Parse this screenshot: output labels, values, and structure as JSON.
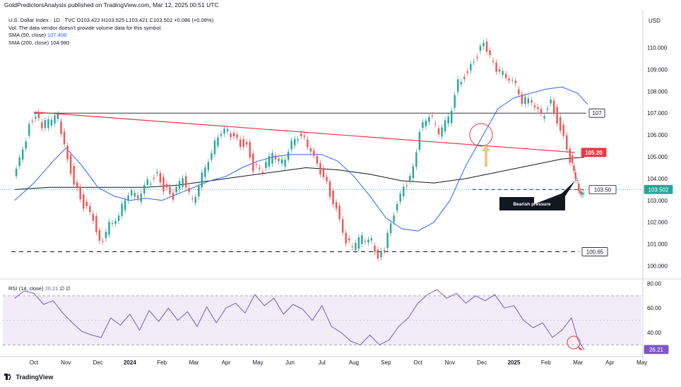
{
  "header": {
    "published_by": "GoldPredictorsAnalysis published on TradingView.com, Mar 12, 2025 00:51 UTC"
  },
  "legend": {
    "symbol_line": "U.S. Dollar Index · 1D · TVC",
    "ohlc": "O103.422 H103.525 L103.421 C103.502 +0.086 (+0.08%)",
    "vol_note": "Vol: The data vendor doesn't provide volume data for this symbol.",
    "sma50_label": "SMA (50, close)",
    "sma50_value": "107.408",
    "sma200_label": "SMA (200, close)",
    "sma200_value": "104.980",
    "rsi_label": "RSI (14, close)",
    "rsi_value": "26.21",
    "rsi_extra": "∅ ∅"
  },
  "axis": {
    "currency": "USD"
  },
  "footer": {
    "brand": "TradingView"
  },
  "annotation": {
    "bearish": "Bearish pressure"
  },
  "colors": {
    "up": "#26a69a",
    "down": "#ef5350",
    "sma50": "#2962ff",
    "sma200": "#131722",
    "trendline": "#f23645",
    "rsi": "#7e57c2",
    "rsi_band": "#ede7f6"
  },
  "chart_data": {
    "type": "line",
    "price_axis": {
      "ticks": [
        "110.000",
        "109.000",
        "108.000",
        "107.000",
        "106.000",
        "105.000",
        "104.000",
        "103.000",
        "102.000",
        "101.000",
        "100.000"
      ],
      "tick_values": [
        110,
        109,
        108,
        107,
        106,
        105,
        104,
        103,
        102,
        101,
        100
      ],
      "ylim": [
        99.5,
        111.6
      ]
    },
    "rsi_axis": {
      "ticks": [
        "80.00",
        "60.00",
        "40.00"
      ],
      "tick_values": [
        80,
        60,
        40
      ],
      "ylim": [
        25,
        82
      ],
      "bands": [
        70,
        30
      ]
    },
    "time_axis": {
      "labels": [
        "Oct",
        "Nov",
        "Dec",
        "2024",
        "Feb",
        "Mar",
        "Apr",
        "May",
        "Jun",
        "Jul",
        "Aug",
        "Sep",
        "Oct",
        "Nov",
        "Dec",
        "2025",
        "Feb",
        "Mar",
        "Apr",
        "May"
      ],
      "month_index": [
        0,
        1,
        2,
        3,
        4,
        5,
        6,
        7,
        8,
        9,
        10,
        11,
        12,
        13,
        14,
        15,
        16,
        17,
        18,
        19
      ]
    },
    "series": [
      {
        "name": "U.S. Dollar Index",
        "month_index": [
          -0.6,
          -0.3,
          -0.1,
          0.1,
          0.3,
          0.5,
          0.8,
          1.0,
          1.3,
          1.6,
          1.9,
          2.1,
          2.4,
          2.7,
          3.0,
          3.3,
          3.6,
          3.9,
          4.1,
          4.4,
          4.7,
          5.0,
          5.3,
          5.6,
          5.9,
          6.1,
          6.4,
          6.7,
          6.9,
          7.2,
          7.5,
          7.8,
          8.1,
          8.4,
          8.6,
          8.9,
          9.2,
          9.5,
          9.8,
          10.0,
          10.3,
          10.6,
          10.8,
          11.0,
          11.3,
          11.6,
          11.9,
          12.1,
          12.4,
          12.7,
          13.0,
          13.3,
          13.6,
          13.9,
          14.1,
          14.4,
          14.7,
          15.0,
          15.3,
          15.6,
          15.9,
          16.2,
          16.5,
          16.8,
          16.9,
          17.0,
          17.1,
          17.2
        ],
        "values": [
          104.0,
          105.2,
          106.5,
          107.0,
          106.4,
          106.6,
          106.8,
          105.6,
          103.8,
          102.8,
          102.1,
          101.0,
          101.9,
          102.4,
          103.4,
          103.1,
          103.8,
          104.2,
          103.6,
          103.2,
          104.0,
          102.9,
          104.2,
          105.3,
          106.2,
          106.1,
          105.7,
          105.5,
          104.5,
          104.4,
          105.1,
          104.7,
          105.7,
          106.1,
          105.4,
          104.6,
          103.7,
          102.6,
          101.2,
          100.8,
          101.3,
          101.1,
          100.5,
          100.8,
          102.4,
          103.5,
          104.4,
          106.3,
          107.0,
          106.1,
          106.7,
          108.4,
          108.9,
          109.7,
          110.1,
          109.2,
          108.8,
          108.6,
          107.6,
          107.5,
          106.8,
          107.5,
          106.3,
          104.9,
          104.2,
          103.8,
          103.4,
          103.5
        ]
      },
      {
        "name": "SMA (50, close)",
        "month_index": [
          -0.6,
          0.0,
          0.6,
          1.0,
          1.5,
          2.0,
          2.5,
          3.0,
          3.5,
          4.0,
          4.5,
          5.0,
          5.5,
          6.0,
          6.5,
          7.0,
          7.5,
          8.0,
          8.5,
          9.0,
          9.5,
          10.0,
          10.5,
          11.0,
          11.5,
          12.0,
          12.5,
          13.0,
          13.5,
          14.0,
          14.5,
          15.0,
          15.5,
          16.0,
          16.5,
          17.0,
          17.3
        ],
        "values": [
          103.0,
          103.8,
          104.8,
          105.4,
          104.6,
          103.6,
          103.2,
          103.0,
          103.1,
          103.0,
          103.3,
          103.6,
          103.9,
          104.1,
          104.5,
          104.8,
          105.0,
          105.1,
          105.1,
          105.1,
          104.8,
          104.1,
          103.2,
          102.2,
          101.7,
          101.6,
          102.0,
          103.0,
          104.6,
          105.9,
          107.2,
          107.7,
          107.9,
          108.1,
          108.2,
          107.9,
          107.4
        ]
      },
      {
        "name": "SMA (200, close)",
        "month_index": [
          -0.6,
          0.5,
          1.5,
          2.5,
          3.5,
          4.5,
          5.5,
          6.5,
          7.5,
          8.5,
          9.5,
          10.5,
          11.5,
          12.5,
          13.5,
          14.5,
          15.5,
          16.5,
          17.2
        ],
        "values": [
          103.5,
          103.6,
          103.6,
          103.6,
          103.6,
          103.7,
          103.9,
          104.1,
          104.3,
          104.5,
          104.4,
          104.2,
          103.9,
          103.8,
          104.0,
          104.3,
          104.6,
          104.9,
          104.98
        ]
      },
      {
        "name": "RSI (14, close)",
        "month_index": [
          -0.6,
          -0.3,
          0.0,
          0.3,
          0.6,
          0.9,
          1.2,
          1.5,
          1.8,
          2.1,
          2.4,
          2.7,
          3.0,
          3.3,
          3.6,
          3.9,
          4.2,
          4.5,
          4.8,
          5.1,
          5.4,
          5.7,
          6.0,
          6.3,
          6.6,
          6.9,
          7.2,
          7.5,
          7.8,
          8.1,
          8.4,
          8.7,
          9.0,
          9.3,
          9.6,
          9.9,
          10.2,
          10.5,
          10.8,
          11.1,
          11.4,
          11.7,
          12.0,
          12.3,
          12.6,
          12.9,
          13.2,
          13.5,
          13.8,
          14.1,
          14.4,
          14.7,
          15.0,
          15.3,
          15.6,
          15.9,
          16.2,
          16.5,
          16.8,
          17.0,
          17.2
        ],
        "values": [
          68,
          74,
          72,
          63,
          66,
          56,
          48,
          41,
          38,
          36,
          52,
          46,
          55,
          42,
          58,
          49,
          60,
          50,
          57,
          45,
          61,
          48,
          60,
          64,
          56,
          71,
          62,
          68,
          55,
          63,
          59,
          50,
          62,
          45,
          40,
          33,
          30,
          38,
          30,
          34,
          45,
          52,
          64,
          71,
          75,
          68,
          72,
          64,
          70,
          66,
          71,
          60,
          62,
          50,
          44,
          48,
          36,
          42,
          52,
          34,
          26
        ]
      }
    ],
    "levels": [
      {
        "value": 107.0,
        "label": "107"
      },
      {
        "value": 105.2,
        "label": "105.20"
      },
      {
        "value": 103.5,
        "label": "103.50"
      },
      {
        "value": 103.502,
        "label": "103.502"
      },
      {
        "value": 100.65,
        "label": "100.65"
      }
    ],
    "trendline": {
      "month_index": [
        0.0,
        16.9
      ],
      "values": [
        107.05,
        105.2
      ]
    }
  }
}
